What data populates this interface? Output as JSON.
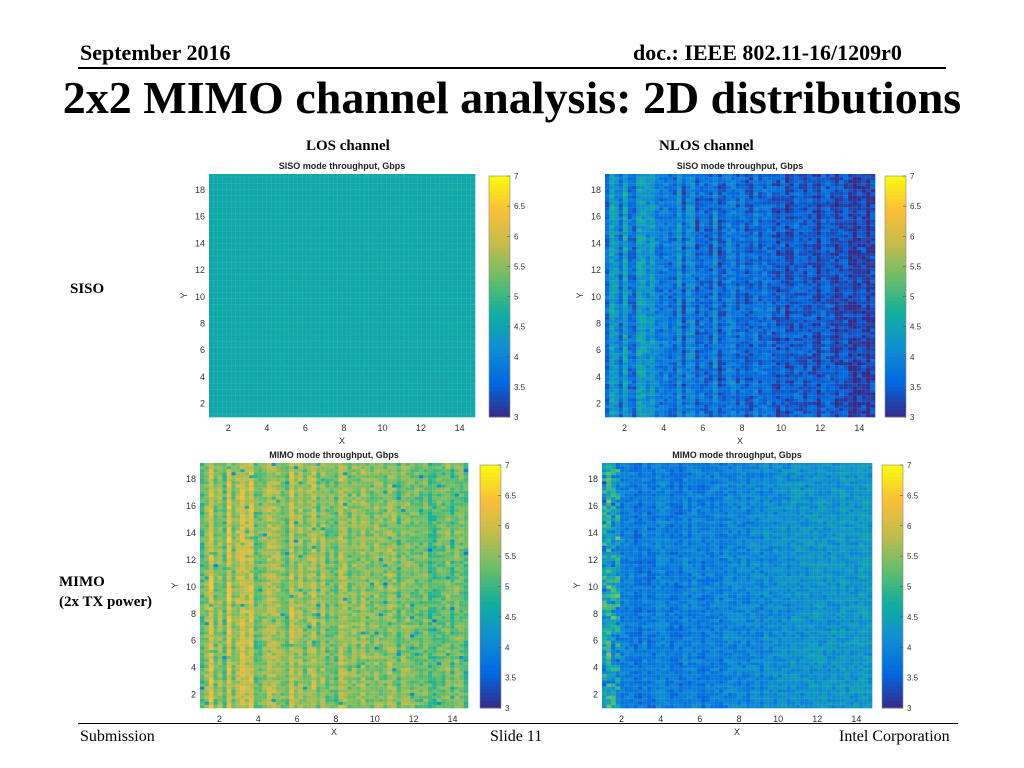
{
  "header": {
    "date": "September 2016",
    "doc": "doc.: IEEE 802.11-16/1209r0"
  },
  "title": "2x2 MIMO channel analysis: 2D distributions",
  "columns": {
    "los": "LOS channel",
    "nlos": "NLOS channel"
  },
  "rows": {
    "siso": "SISO",
    "mimo_line1": "MIMO",
    "mimo_line2": "(2x TX power)"
  },
  "footer": {
    "submission": "Submission",
    "slide": "Slide 11",
    "company": "Intel Corporation"
  },
  "colors": {
    "parula": [
      "#352a87",
      "#0268e1",
      "#108ed2",
      "#0fae9f",
      "#65be6a",
      "#c2bc4c",
      "#f9bf38",
      "#f9fb0e"
    ]
  },
  "chart_data": [
    {
      "type": "heatmap",
      "id": "los_siso",
      "title": "SISO mode throughput, Gbps",
      "xlabel": "X",
      "ylabel": "Y",
      "xlim": [
        1,
        14.8
      ],
      "ylim": [
        1,
        19.2
      ],
      "xticks": [
        2,
        4,
        6,
        8,
        10,
        12,
        14
      ],
      "yticks": [
        2,
        4,
        6,
        8,
        10,
        12,
        14,
        16,
        18
      ],
      "clim": [
        3,
        7
      ],
      "colorbar_ticks": [
        "3",
        "3.5",
        "4",
        "4.5",
        "5",
        "5.5",
        "6",
        "6.5",
        "7"
      ],
      "grid_cols": 60,
      "grid_rows": 80,
      "value_model": {
        "base": 4.6,
        "x_gradient": 0,
        "stripe_amplitude": 0,
        "noise": 0.03
      }
    },
    {
      "type": "heatmap",
      "id": "nlos_siso",
      "title": "SISO mode throughput, Gbps",
      "xlabel": "X",
      "ylabel": "Y",
      "xlim": [
        1,
        14.8
      ],
      "ylim": [
        1,
        19.2
      ],
      "xticks": [
        2,
        4,
        6,
        8,
        10,
        12,
        14
      ],
      "yticks": [
        2,
        4,
        6,
        8,
        10,
        12,
        14,
        16,
        18
      ],
      "clim": [
        3,
        7
      ],
      "colorbar_ticks": [
        "3",
        "3.5",
        "4",
        "4.5",
        "5",
        "5.5",
        "6",
        "6.5",
        "7"
      ],
      "grid_cols": 60,
      "grid_rows": 80,
      "value_model": {
        "base": 3.15,
        "x_gradient": 1.0,
        "stripe_amplitude": 0.5,
        "noise": 0.35
      }
    },
    {
      "type": "heatmap",
      "id": "los_mimo",
      "title": "MIMO mode throughput, Gbps",
      "xlabel": "X",
      "ylabel": "Y",
      "xlim": [
        1,
        14.8
      ],
      "ylim": [
        1,
        19.2
      ],
      "xticks": [
        2,
        4,
        6,
        8,
        10,
        12,
        14
      ],
      "yticks": [
        2,
        4,
        6,
        8,
        10,
        12,
        14,
        16,
        18
      ],
      "clim": [
        3,
        7
      ],
      "colorbar_ticks": [
        "3",
        "3.5",
        "4",
        "4.5",
        "5",
        "5.5",
        "6",
        "6.5",
        "7"
      ],
      "grid_cols": 60,
      "grid_rows": 80,
      "value_model": {
        "base": 5.3,
        "x_gradient": 0.4,
        "stripe_amplitude": 0.6,
        "noise": 0.35
      }
    },
    {
      "type": "heatmap",
      "id": "nlos_mimo",
      "title": "MIMO mode throughput, Gbps",
      "xlabel": "X",
      "ylabel": "Y",
      "xlim": [
        1,
        14.8
      ],
      "ylim": [
        1,
        19.2
      ],
      "xticks": [
        2,
        4,
        6,
        8,
        10,
        12,
        14
      ],
      "yticks": [
        2,
        4,
        6,
        8,
        10,
        12,
        14,
        16,
        18
      ],
      "clim": [
        3,
        7
      ],
      "colorbar_ticks": [
        "3",
        "3.5",
        "4",
        "4.5",
        "5",
        "5.5",
        "6",
        "6.5",
        "7"
      ],
      "grid_cols": 60,
      "grid_rows": 80,
      "value_model": {
        "base": 4.3,
        "x_gradient": -0.6,
        "stripe_amplitude": 0.2,
        "noise": 0.3
      }
    }
  ]
}
